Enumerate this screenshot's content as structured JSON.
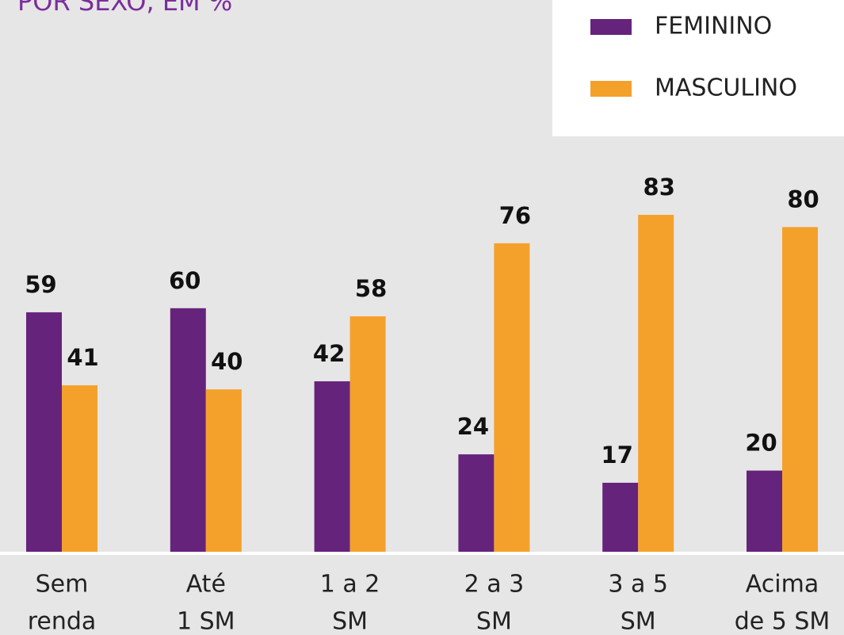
{
  "chart_data": {
    "type": "bar",
    "title": "POR SEXO, EM %",
    "categories": [
      [
        "Sem",
        "renda"
      ],
      [
        "Até",
        "1 SM"
      ],
      [
        "1 a 2",
        "SM"
      ],
      [
        "2 a 3",
        "SM"
      ],
      [
        "3 a 5",
        "SM"
      ],
      [
        "Acima",
        "de 5 SM"
      ]
    ],
    "series": [
      {
        "name": "FEMININO",
        "color": "#66237c",
        "values": [
          59,
          60,
          42,
          24,
          17,
          20
        ]
      },
      {
        "name": "MASCULINO",
        "color": "#f4a12b",
        "values": [
          41,
          40,
          58,
          76,
          83,
          80
        ]
      }
    ],
    "ylim": [
      0,
      100
    ]
  }
}
